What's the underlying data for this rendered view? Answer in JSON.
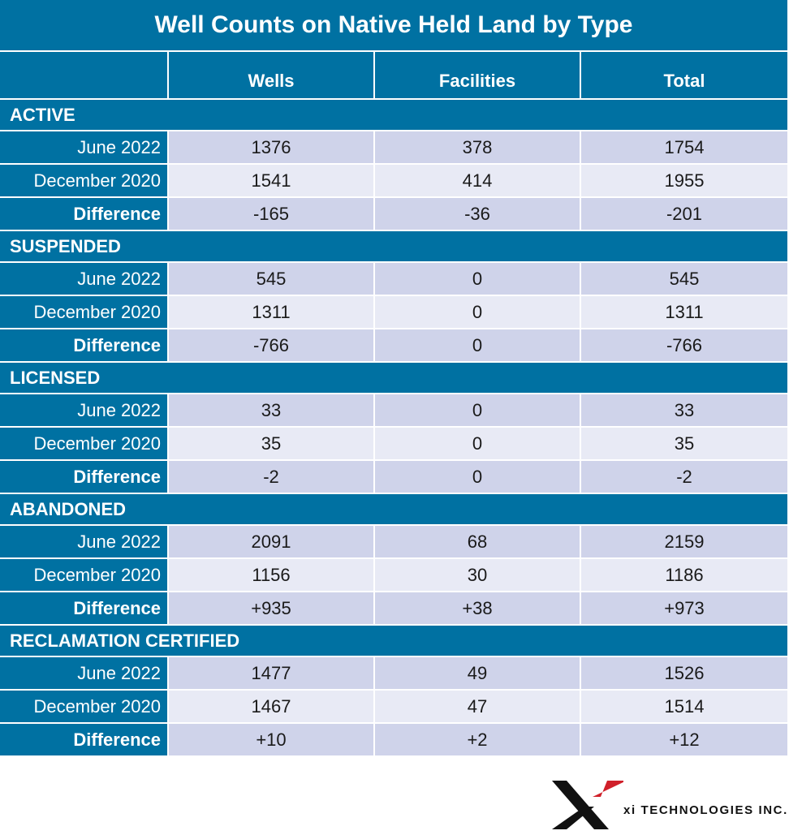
{
  "title": "Well Counts on Native Held Land by Type",
  "chart_data": {
    "type": "table",
    "columns": [
      "",
      "Wells",
      "Facilities",
      "Total"
    ],
    "sections": [
      {
        "name": "ACTIVE",
        "rows": [
          {
            "label": "June 2022",
            "values": [
              "1376",
              "378",
              "1754"
            ]
          },
          {
            "label": "December 2020",
            "values": [
              "1541",
              "414",
              "1955"
            ]
          },
          {
            "label": "Difference",
            "values": [
              "-165",
              "-36",
              "-201"
            ]
          }
        ]
      },
      {
        "name": "SUSPENDED",
        "rows": [
          {
            "label": "June 2022",
            "values": [
              "545",
              "0",
              "545"
            ]
          },
          {
            "label": "December 2020",
            "values": [
              "1311",
              "0",
              "1311"
            ]
          },
          {
            "label": "Difference",
            "values": [
              "-766",
              "0",
              "-766"
            ]
          }
        ]
      },
      {
        "name": "LICENSED",
        "rows": [
          {
            "label": "June 2022",
            "values": [
              "33",
              "0",
              "33"
            ]
          },
          {
            "label": "December 2020",
            "values": [
              "35",
              "0",
              "35"
            ]
          },
          {
            "label": "Difference",
            "values": [
              "-2",
              "0",
              "-2"
            ]
          }
        ]
      },
      {
        "name": "ABANDONED",
        "rows": [
          {
            "label": "June 2022",
            "values": [
              "2091",
              "68",
              "2159"
            ]
          },
          {
            "label": "December 2020",
            "values": [
              "1156",
              "30",
              "1186"
            ]
          },
          {
            "label": "Difference",
            "values": [
              "+935",
              "+38",
              "+973"
            ]
          }
        ]
      },
      {
        "name": "RECLAMATION CERTIFIED",
        "rows": [
          {
            "label": "June 2022",
            "values": [
              "1477",
              "49",
              "1526"
            ]
          },
          {
            "label": "December 2020",
            "values": [
              "1467",
              "47",
              "1514"
            ]
          },
          {
            "label": "Difference",
            "values": [
              "+10",
              "+2",
              "+12"
            ]
          }
        ]
      }
    ]
  },
  "logo": {
    "mark": "xi-logo-mark",
    "text": "xi TECHNOLOGIES INC."
  },
  "colors": {
    "header": "#0071a2",
    "row_dark": "#cfd3ea",
    "row_light": "#e8eaf5",
    "logo_red": "#d0202a"
  }
}
